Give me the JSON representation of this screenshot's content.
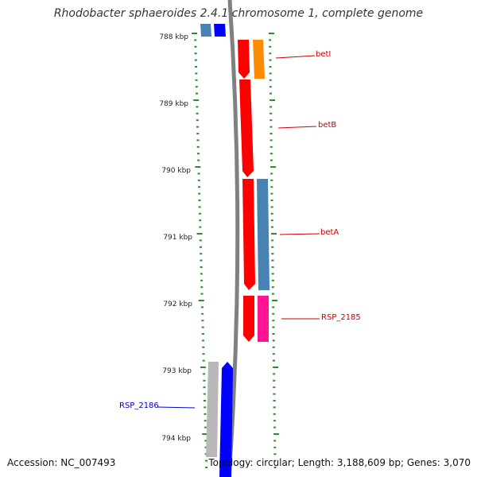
{
  "title": "Rhodobacter sphaeroides 2.4.1 chromosome 1, complete genome",
  "footer": {
    "accession": "Accession: NC_007493",
    "summary": "Topology: circular; Length: 3,188,609 bp; Genes: 3,070"
  },
  "scale": {
    "ticks": [
      "788 kbp",
      "789 kbp",
      "790 kbp",
      "791 kbp",
      "792 kbp",
      "793 kbp",
      "794 kbp"
    ]
  },
  "genes": [
    {
      "label": "betI",
      "color": "#cc0000"
    },
    {
      "label": "betB",
      "color": "#cc0000"
    },
    {
      "label": "betA",
      "color": "#cc0000"
    },
    {
      "label": "RSP_2185",
      "color": "#cc0000"
    },
    {
      "label": "RSP_2186",
      "color": "#0000cc"
    }
  ],
  "colors": {
    "red": "#ff0000",
    "orange": "#ff8c00",
    "steelblue": "#4682b4",
    "magenta": "#ff1493",
    "blue": "#0000ff",
    "gray": "#b8b8b8",
    "backbone": "#808080",
    "tick": "#2e8b2e"
  }
}
